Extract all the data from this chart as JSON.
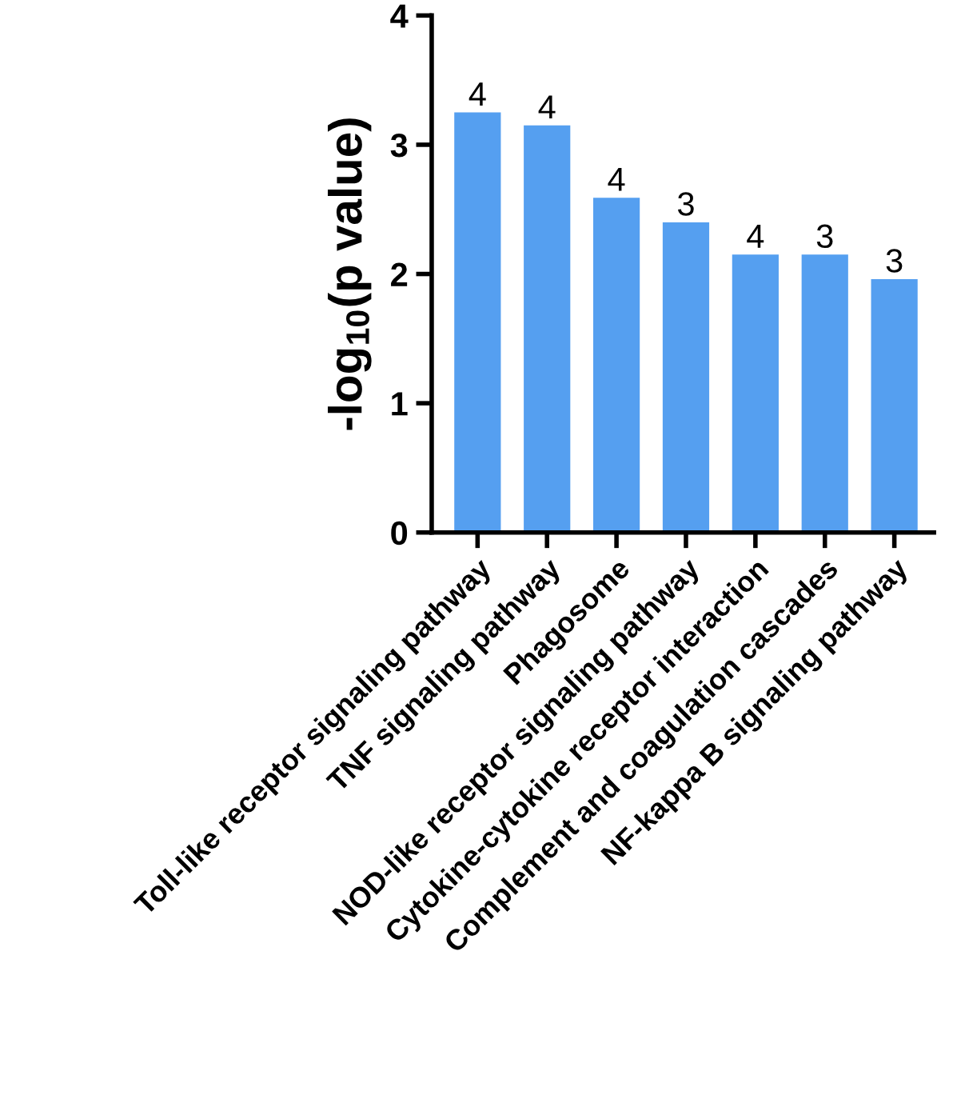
{
  "chart_data": {
    "type": "bar",
    "ylabel": "-log$_{10}$(p value)",
    "categories": [
      "Toll-like receptor signaling pathway",
      "TNF signaling pathway",
      "Phagosome",
      "NOD-like receptor signaling pathway",
      "Cytokine-cytokine receptor interaction",
      "Complement and coagulation cascades",
      "NF-kappa B signaling pathway"
    ],
    "values": [
      3.25,
      3.15,
      2.59,
      2.4,
      2.15,
      2.15,
      1.96
    ],
    "annotations": [
      {
        "text": "4",
        "x": "Toll-like receptor signaling pathway",
        "y": 3.25
      },
      {
        "text": "4",
        "x": "TNF signaling pathway",
        "y": 3.15
      },
      {
        "text": "4",
        "x": "Phagosome",
        "y": 2.59
      },
      {
        "text": "3",
        "x": "NOD-like receptor signaling pathway",
        "y": 2.4
      },
      {
        "text": "4",
        "x": "Cytokine-cytokine receptor interaction",
        "y": 2.15
      },
      {
        "text": "3",
        "x": "Complement and coagulation cascades",
        "y": 2.15
      },
      {
        "text": "3",
        "x": "NF-kappa B signaling pathway",
        "y": 1.96
      }
    ],
    "color": "#559ff0",
    "ylim": [
      0,
      4
    ],
    "yticks": [
      0,
      1,
      2,
      3,
      4
    ],
    "grid": false,
    "legend": false
  }
}
